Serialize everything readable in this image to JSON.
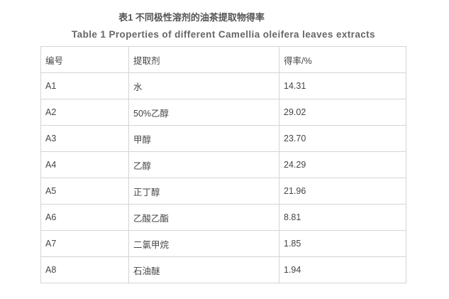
{
  "title_cn": "表1 不同极性溶剂的油茶提取物得率",
  "title_en": "Table 1 Properties of different Camellia oleifera leaves extracts",
  "table": {
    "headers": [
      "编号",
      "提取剂",
      "得率/%"
    ],
    "rows": [
      [
        "A1",
        "水",
        "14.31"
      ],
      [
        "A2",
        "50%乙醇",
        "29.02"
      ],
      [
        "A3",
        "甲醇",
        "23.70"
      ],
      [
        "A4",
        "乙醇",
        "24.29"
      ],
      [
        "A5",
        "正丁醇",
        "21.96"
      ],
      [
        "A6",
        "乙酸乙酯",
        "8.81"
      ],
      [
        "A7",
        "二氯甲烷",
        "1.85"
      ],
      [
        "A8",
        "石油醚",
        "1.94"
      ]
    ]
  }
}
